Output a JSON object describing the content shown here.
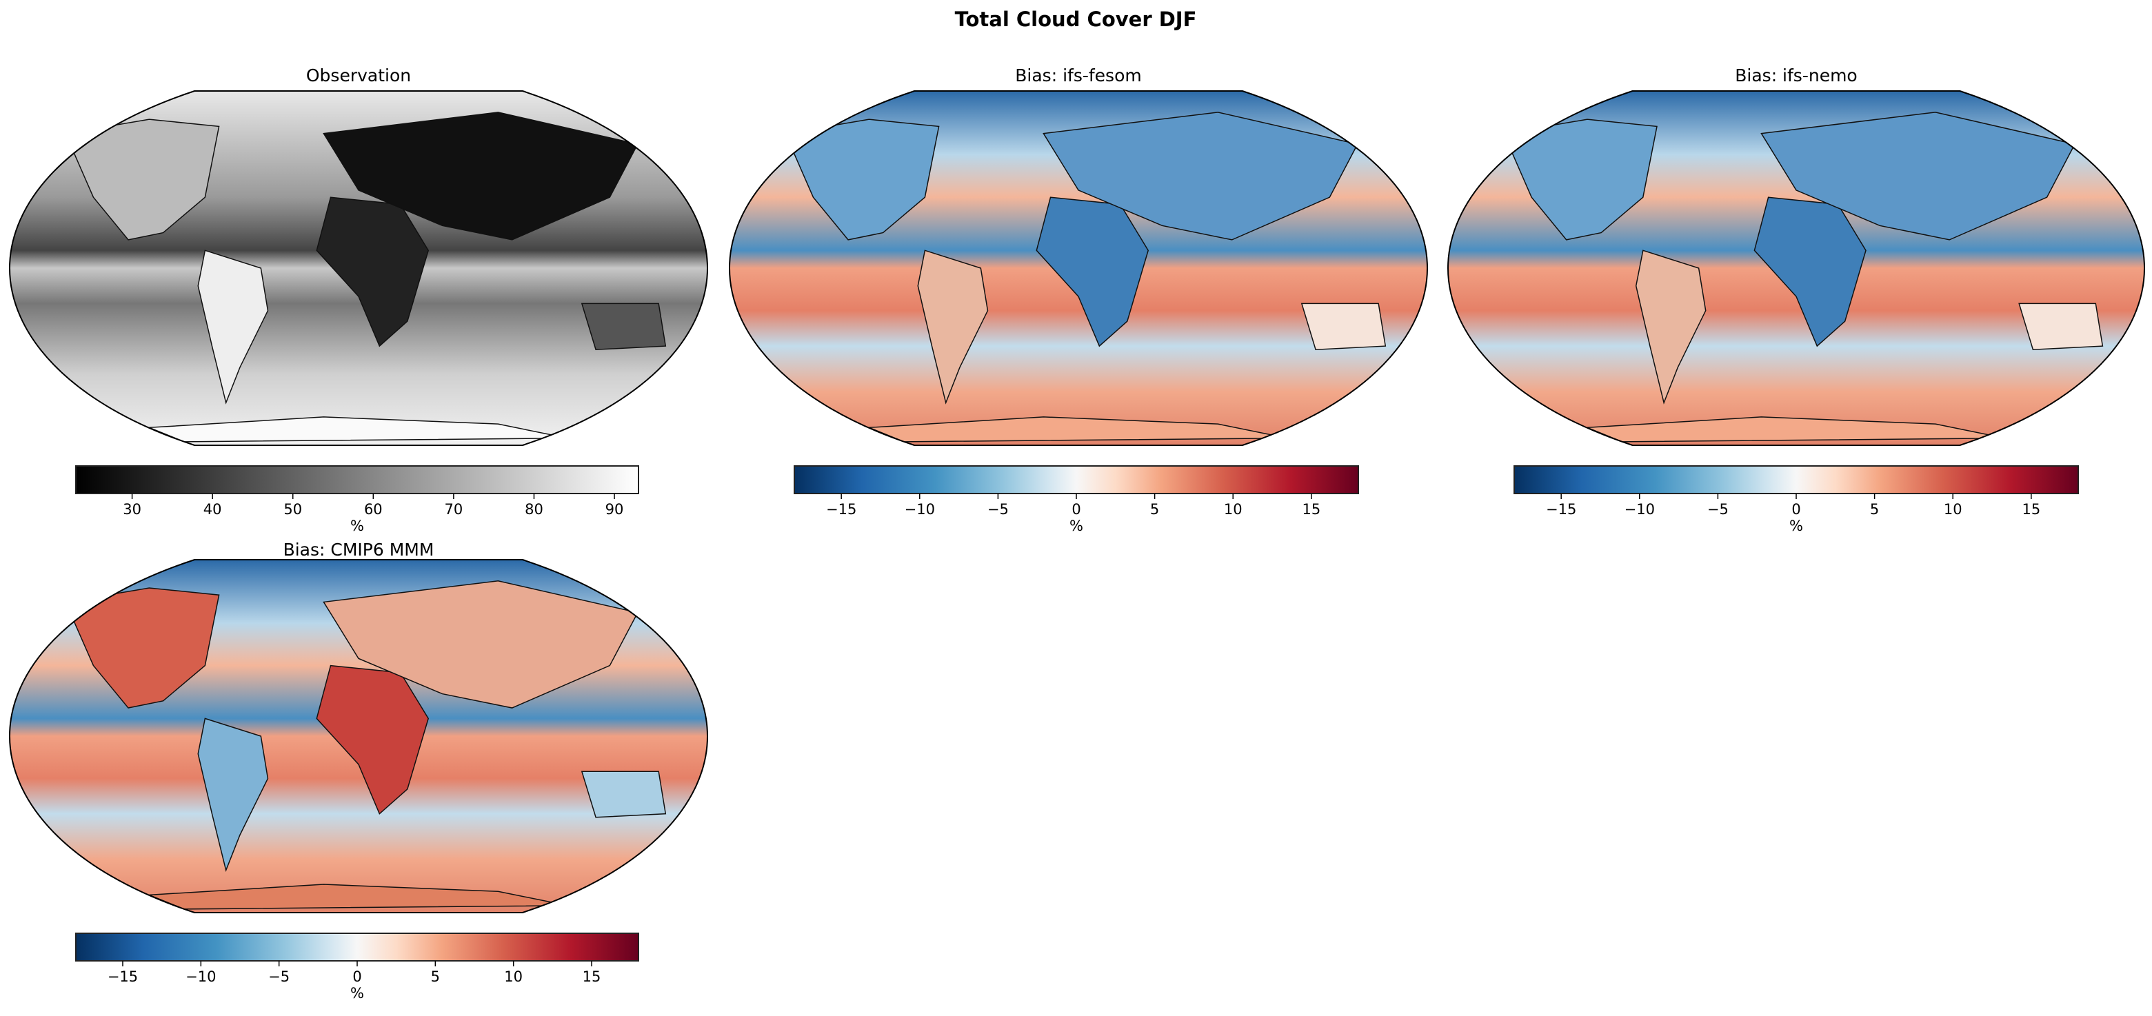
{
  "chart_data": {
    "type": "heatmap",
    "title": "Total Cloud Cover DJF",
    "panels": [
      {
        "title": "Observation",
        "colormap": "Greys_r",
        "cbar_label": "%",
        "vmin": 23,
        "vmax": 93,
        "ticks": [
          30,
          40,
          50,
          60,
          70,
          80,
          90
        ],
        "projection": "Robinson"
      },
      {
        "title": "Bias: ifs-fesom",
        "colormap": "RdBu_r",
        "cbar_label": "%",
        "vmin": -18,
        "vmax": 18,
        "ticks": [
          -15,
          -10,
          -5,
          0,
          5,
          10,
          15
        ],
        "projection": "Robinson"
      },
      {
        "title": "Bias: ifs-nemo",
        "colormap": "RdBu_r",
        "cbar_label": "%",
        "vmin": -18,
        "vmax": 18,
        "ticks": [
          -15,
          -10,
          -5,
          0,
          5,
          10,
          15
        ],
        "projection": "Robinson"
      },
      {
        "title": "Bias: CMIP6 MMM",
        "colormap": "RdBu_r",
        "cbar_label": "%",
        "vmin": -18,
        "vmax": 18,
        "ticks": [
          -15,
          -10,
          -5,
          0,
          5,
          10,
          15
        ],
        "projection": "Robinson"
      }
    ]
  }
}
